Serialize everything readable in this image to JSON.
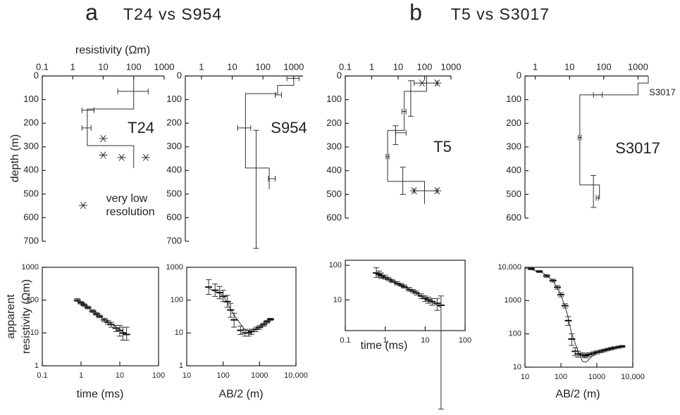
{
  "chart_data": [
    {
      "type": "step",
      "letter": "a",
      "title": "T24 vs S954",
      "label": "T24",
      "xlabel": "resistivity (Ωm)",
      "ylabel": "depth (m)",
      "annotation": [
        "very low",
        "resolution"
      ],
      "xlog": true,
      "xlim": [
        0.1,
        1000
      ],
      "xticks": [
        0.1,
        1,
        10,
        100,
        1000
      ],
      "ylim": [
        0,
        700
      ],
      "yticks": [
        0,
        100,
        200,
        300,
        400,
        500,
        600,
        700
      ],
      "model": {
        "resistivity": [
          100,
          100,
          3,
          3,
          100,
          100
        ],
        "depth": [
          0,
          140,
          140,
          295,
          295,
          390
        ]
      },
      "hbars": {
        "depth": [
          65,
          145,
          220
        ],
        "lo": [
          30,
          2,
          2
        ],
        "hi": [
          300,
          5,
          4
        ]
      },
      "vbars": {
        "resistivity": [],
        "lo": [],
        "hi": []
      },
      "asterisks": {
        "resistivity": [
          10,
          10,
          40,
          250
        ],
        "depth": [
          265,
          335,
          345,
          345
        ]
      }
    },
    {
      "type": "step",
      "label": "S954",
      "xlog": true,
      "xlim": [
        0.3,
        2000
      ],
      "xticks": [
        1,
        10,
        100,
        1000
      ],
      "ylim": [
        0,
        700
      ],
      "yticks": [
        0,
        100,
        200,
        300,
        400,
        500,
        600,
        700
      ],
      "model": {
        "resistivity": [
          1000,
          1000,
          300,
          300,
          27,
          27,
          160,
          160
        ],
        "depth": [
          0,
          40,
          40,
          75,
          75,
          390,
          390,
          480
        ]
      },
      "hbars": {
        "depth": [
          10,
          80,
          220,
          435
        ],
        "lo": [
          600,
          250,
          15,
          150
        ],
        "hi": [
          1500,
          400,
          40,
          250
        ]
      },
      "vbars": {
        "resistivity": [
          60
        ],
        "lo": [
          230
        ],
        "hi": [
          730
        ]
      },
      "asterisks": {
        "resistivity": [],
        "depth": []
      }
    },
    {
      "type": "step",
      "letter": "b",
      "title": "T5 vs S3017",
      "label": "T5",
      "xlog": true,
      "xlim": [
        0.1,
        1000
      ],
      "xticks": [
        0.1,
        1,
        10,
        100,
        1000
      ],
      "ylim": [
        0,
        600
      ],
      "yticks": [
        0,
        100,
        200,
        300,
        400,
        500,
        600
      ],
      "model": {
        "resistivity": [
          120,
          120,
          17,
          17,
          4,
          4,
          100,
          100
        ],
        "depth": [
          0,
          65,
          65,
          230,
          230,
          445,
          445,
          540
        ]
      },
      "hbars": {
        "depth": [
          30,
          150,
          240,
          340,
          485
        ],
        "lo": [
          40,
          14,
          8,
          3.5,
          40
        ],
        "hi": [
          300,
          20,
          20,
          4.5,
          300
        ]
      },
      "vbars": {
        "resistivity": [
          30,
          8,
          15
        ],
        "lo": [
          20,
          210,
          385
        ],
        "hi": [
          170,
          290,
          500
        ]
      },
      "asterisks": {
        "resistivity": [
          80,
          300,
          40,
          300
        ],
        "depth": [
          30,
          30,
          485,
          485
        ]
      }
    },
    {
      "type": "step",
      "label": "S3017",
      "label_small": "S3017",
      "xlog": true,
      "xlim": [
        0.5,
        2000
      ],
      "xticks": [
        1,
        10,
        100,
        1000
      ],
      "ylim": [
        0,
        600
      ],
      "yticks": [
        0,
        100,
        200,
        300,
        400,
        500,
        600
      ],
      "model": {
        "resistivity": [
          2000,
          2000,
          1000,
          1000,
          20,
          20,
          75,
          75
        ],
        "depth": [
          0,
          30,
          30,
          80,
          80,
          460,
          460,
          520
        ]
      },
      "hbars": {
        "depth": [
          80,
          260,
          515
        ],
        "lo": [
          50,
          18,
          60
        ],
        "hi": [
          90,
          22,
          70
        ]
      },
      "vbars": {
        "resistivity": [
          50
        ],
        "lo": [
          420
        ],
        "hi": [
          555
        ]
      },
      "asterisks": {
        "resistivity": [],
        "depth": []
      }
    },
    {
      "type": "line",
      "xlabel": "time (ms)",
      "ylabel": [
        "apparent",
        "resistivity (Ωm)"
      ],
      "xlim": [
        0.1,
        100
      ],
      "xticks": [
        0.1,
        1,
        10,
        100
      ],
      "ylim": [
        1,
        1000
      ],
      "yticks": [
        1,
        10,
        100,
        1000
      ],
      "x": [
        0.8,
        1,
        1.2,
        1.5,
        2,
        2.5,
        3,
        4,
        5,
        6,
        8,
        10,
        12,
        15
      ],
      "values": [
        100,
        83,
        71,
        59,
        46,
        38,
        32,
        25,
        21,
        18,
        14,
        12,
        10,
        9
      ],
      "err_lo": [
        90,
        76,
        65,
        54,
        42,
        35,
        29,
        22,
        18,
        15,
        11,
        8,
        6,
        6
      ],
      "err_hi": [
        112,
        91,
        78,
        65,
        51,
        42,
        35,
        28,
        24,
        21,
        17,
        17,
        15,
        15
      ],
      "fit": {
        "x": [
          0.8,
          1,
          1.5,
          2,
          3,
          5,
          8,
          12,
          15
        ],
        "values": [
          98,
          84,
          60,
          47,
          33,
          22,
          15,
          11,
          9
        ]
      }
    },
    {
      "type": "line",
      "xlabel": "AB/2 (m)",
      "xlim": [
        10,
        10000
      ],
      "xticks": [
        10,
        100,
        1000,
        {
          "value": 10000,
          "label": "10,000"
        }
      ],
      "ylim": [
        1,
        1000
      ],
      "yticks": [
        1,
        10,
        100,
        1000
      ],
      "x": [
        40,
        60,
        80,
        100,
        130,
        160,
        200,
        300,
        400,
        500,
        600,
        800,
        1000,
        1300,
        1600,
        2000
      ],
      "values": [
        250,
        200,
        170,
        130,
        90,
        50,
        25,
        12,
        10,
        10,
        11,
        13,
        15,
        18,
        22,
        26
      ],
      "err_lo": [
        150,
        130,
        110,
        90,
        60,
        30,
        15,
        9,
        8,
        8,
        9,
        11,
        13,
        16,
        20,
        24
      ],
      "err_hi": [
        420,
        310,
        260,
        200,
        140,
        80,
        40,
        16,
        13,
        12,
        13,
        15,
        17,
        20,
        24,
        28
      ],
      "fit": {
        "x": [
          40,
          100,
          200,
          400,
          600,
          1000,
          2000
        ],
        "values": [
          230,
          140,
          35,
          12,
          11,
          15,
          26
        ]
      }
    },
    {
      "type": "line",
      "xlabel": "time (ms)",
      "xlim": [
        0.1,
        100
      ],
      "xticks": [
        0.1,
        1,
        10,
        100
      ],
      "ylim": [
        1.3,
        140
      ],
      "yticks": [
        10,
        100
      ],
      "x": [
        0.6,
        0.7,
        0.8,
        1,
        1.2,
        1.5,
        2,
        2.5,
        3,
        4,
        5,
        6,
        8,
        10,
        12,
        15,
        20,
        25
      ],
      "values": [
        60,
        55,
        50,
        45,
        40,
        35,
        30,
        27,
        24,
        20,
        18,
        16,
        13,
        11,
        10,
        9,
        8,
        7
      ],
      "err_lo": [
        45,
        45,
        42,
        40,
        36,
        32,
        27,
        25,
        22,
        18,
        16,
        14,
        11,
        9,
        8,
        7,
        5,
        0.007
      ],
      "err_hi": [
        85,
        68,
        60,
        52,
        45,
        39,
        34,
        30,
        27,
        23,
        20,
        18,
        15,
        13,
        12,
        11,
        11,
        13
      ],
      "fit": {
        "x": [
          0.6,
          1,
          2,
          5,
          10,
          25
        ],
        "values": [
          58,
          45,
          31,
          18,
          11,
          6
        ]
      }
    },
    {
      "type": "line",
      "xlabel": "AB/2 (m)",
      "xlim": [
        10,
        10000
      ],
      "xticks": [
        10,
        100,
        1000,
        {
          "value": 10000,
          "label": "10,000"
        }
      ],
      "ylim": [
        10,
        10000
      ],
      "yticks": [
        10,
        100,
        1000,
        {
          "value": 10000,
          "label": "10,000"
        }
      ],
      "x": [
        15,
        25,
        40,
        60,
        80,
        100,
        130,
        160,
        200,
        250,
        300,
        400,
        500,
        600,
        800,
        1000,
        1300,
        1600,
        2000,
        2500,
        3000,
        4000,
        5000
      ],
      "values": [
        9000,
        7500,
        5500,
        4000,
        2500,
        1500,
        700,
        250,
        70,
        30,
        25,
        23,
        22,
        24,
        26,
        28,
        30,
        32,
        34,
        36,
        38,
        40,
        42
      ],
      "err_lo": [
        8500,
        7000,
        5000,
        3600,
        2200,
        1300,
        600,
        180,
        45,
        22,
        20,
        20,
        19,
        21,
        23,
        25,
        27,
        29,
        31,
        33,
        35,
        37,
        39
      ],
      "err_hi": [
        9500,
        8000,
        6000,
        4400,
        2800,
        1700,
        800,
        330,
        100,
        38,
        30,
        27,
        25,
        27,
        29,
        31,
        33,
        35,
        37,
        39,
        41,
        43,
        45
      ],
      "fit": {
        "x": [
          10,
          30,
          60,
          100,
          150,
          200,
          300,
          400,
          500,
          700,
          1000,
          2000,
          5000
        ],
        "values": [
          9500,
          7000,
          4000,
          1500,
          400,
          100,
          30,
          15,
          14,
          20,
          28,
          35,
          42
        ]
      }
    }
  ]
}
